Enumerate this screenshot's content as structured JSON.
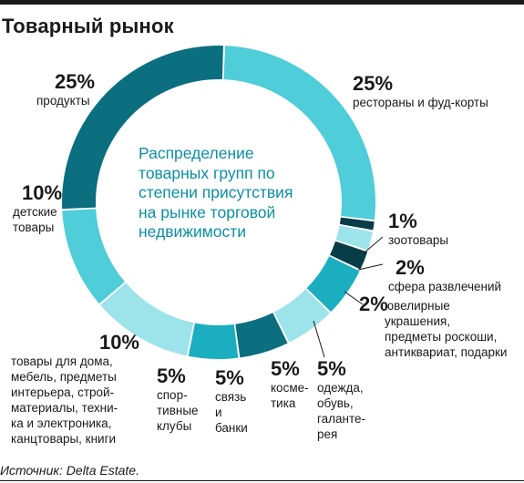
{
  "title": "Товарный рынок",
  "center_text": "Распределение товарных групп по степени присутствия на рынке торговой недвижимости",
  "source": "Источник: Delta Estate.",
  "colors": {
    "teal_dark": "#0b6f7f",
    "teal_light": "#4fcdd8",
    "navy": "#083c46",
    "pale": "#9de3ea",
    "mid": "#1aaec0",
    "text_center": "#0d8fa3"
  },
  "chart_data": {
    "type": "pie",
    "variant": "donut",
    "title": "Распределение товарных групп по степени присутствия на рынке торговой недвижимости",
    "unit": "%",
    "slices": [
      {
        "pct": "25%",
        "value": 25,
        "label": "рестораны и фуд-корты",
        "color": "#4fcdd8"
      },
      {
        "pct": "1%",
        "value": 1,
        "label": "зоотовары",
        "color": "#083c46"
      },
      {
        "pct": "2%",
        "value": 2,
        "label": "сфера развлечений",
        "color": "#9de3ea"
      },
      {
        "pct": "2%",
        "value": 2,
        "label": "ювелирные\nукрашения,\nпредметы роскоши,\nантиквариат, подарки",
        "color": "#083c46"
      },
      {
        "pct": "5%",
        "value": 5,
        "label": "одежда,\nобувь,\nгаланте-\nрея",
        "color": "#1aaec0"
      },
      {
        "pct": "5%",
        "value": 5,
        "label": "космe-\nтика",
        "color": "#9de3ea"
      },
      {
        "pct": "5%",
        "value": 5,
        "label": "связь\nи\nбанки",
        "color": "#0b6f7f"
      },
      {
        "pct": "5%",
        "value": 5,
        "label": "спор-\nтивные\nклубы",
        "color": "#1aaec0"
      },
      {
        "pct": "10%",
        "value": 10,
        "label": "товары для дома,\nмебель, предметы\nинтерьера, строй-\nматериалы, техни-\nка и электроника,\nканцтовары, книги",
        "color": "#9de3ea"
      },
      {
        "pct": "10%",
        "value": 10,
        "label": "детские\nтовары",
        "color": "#4fcdd8"
      },
      {
        "pct": "25%",
        "value": 25,
        "label": "продукты",
        "color": "#0b6f7f"
      }
    ]
  }
}
